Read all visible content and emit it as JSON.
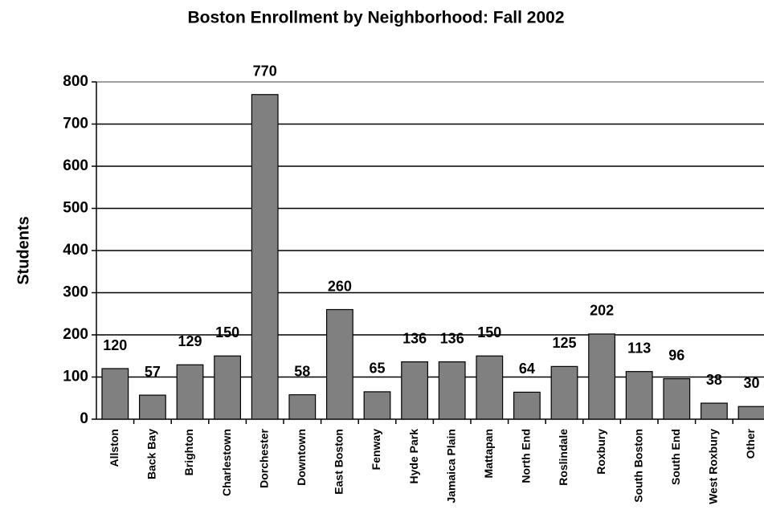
{
  "chart_data": {
    "type": "bar",
    "title": "Boston Enrollment by Neighborhood:  Fall 2002",
    "ylabel": "Students",
    "categories": [
      "Allston",
      "Back Bay",
      "Brighton",
      "Charlestown",
      "Dorchester",
      "Downtown",
      "East Boston",
      "Fenway",
      "Hyde Park",
      "Jamaica Plain",
      "Mattapan",
      "North End",
      "Roslindale",
      "Roxbury",
      "South Boston",
      "South End",
      "West Roxbury",
      "Other"
    ],
    "values": [
      120,
      57,
      129,
      150,
      770,
      58,
      260,
      65,
      136,
      136,
      150,
      64,
      125,
      202,
      113,
      96,
      38,
      30
    ],
    "color": "#808080",
    "ylim": [
      0,
      800
    ],
    "yticks": [
      0,
      100,
      200,
      300,
      400,
      500,
      600,
      700,
      800
    ],
    "grid": true
  }
}
